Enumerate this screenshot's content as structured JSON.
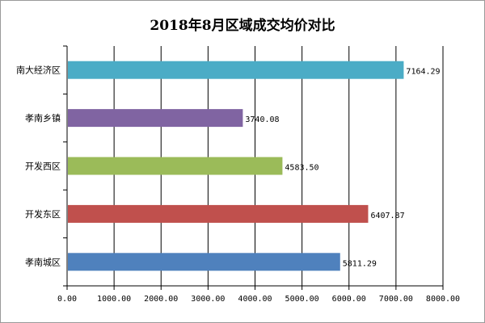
{
  "chart_data": {
    "type": "bar",
    "orientation": "horizontal",
    "title": "2018年8月区域成交均价对比",
    "categories": [
      "南大经济区",
      "孝南乡镇",
      "开发西区",
      "开发东区",
      "孝南城区"
    ],
    "values": [
      7164.29,
      3740.08,
      4583.5,
      6407.87,
      5811.29
    ],
    "value_labels": [
      "7164.29",
      "3740.08",
      "4583.50",
      "6407.87",
      "5811.29"
    ],
    "colors": [
      "#4bacc6",
      "#8064a2",
      "#9bbb59",
      "#c0504d",
      "#4f81bd"
    ],
    "xlim": [
      0,
      8000
    ],
    "xticks": [
      0,
      1000,
      2000,
      3000,
      4000,
      5000,
      6000,
      7000,
      8000
    ],
    "xtick_labels": [
      "0.00",
      "1000.00",
      "2000.00",
      "3000.00",
      "4000.00",
      "5000.00",
      "6000.00",
      "7000.00",
      "8000.00"
    ],
    "grid": true,
    "legend": "none",
    "xlabel": "",
    "ylabel": ""
  }
}
